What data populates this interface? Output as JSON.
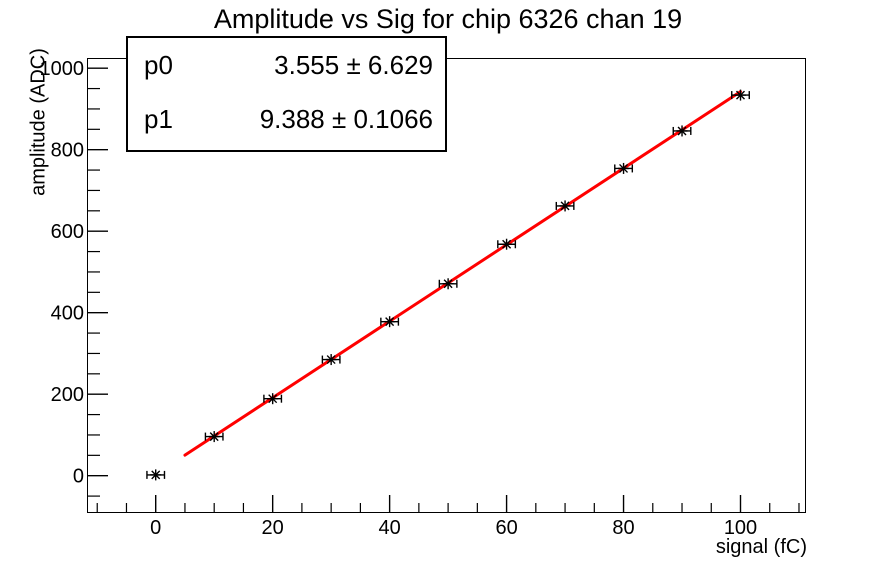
{
  "title": "Amplitude vs Sig for chip 6326 chan 19",
  "stats_box": {
    "rows": [
      {
        "name": "p0",
        "value": "3.555 ± 6.629"
      },
      {
        "name": "p1",
        "value": "9.388 ± 0.1066"
      }
    ]
  },
  "chart_data": {
    "type": "scatter",
    "title": "Amplitude vs Sig for chip 6326 chan 19",
    "xlabel": "signal (fC)",
    "ylabel": "amplitude (ADC)",
    "x": [
      0,
      10,
      20,
      30,
      40,
      50,
      60,
      70,
      80,
      90,
      100
    ],
    "y": [
      2,
      96,
      189,
      285,
      378,
      471,
      568,
      662,
      754,
      846,
      934
    ],
    "x_error": 1.5,
    "fit": {
      "p0": 3.555,
      "p0_err": 6.629,
      "p1": 9.388,
      "p1_err": 0.1066,
      "range": [
        5,
        100
      ]
    },
    "xlim": [
      -11.75,
      111.2
    ],
    "ylim": [
      -91.5,
      1025
    ],
    "x_major_ticks": [
      0,
      20,
      40,
      60,
      80,
      100
    ],
    "x_minor_step": 5,
    "y_major_ticks": [
      0,
      200,
      400,
      600,
      800,
      1000
    ],
    "y_minor_step": 50,
    "grid": false,
    "legend_position": "stats-box-top-left",
    "marker_style": "asterisk-with-x-error-bars",
    "colors": {
      "fit_line": "#ff0000",
      "marker": "#000000",
      "axis": "#000000",
      "background": "#ffffff"
    }
  }
}
